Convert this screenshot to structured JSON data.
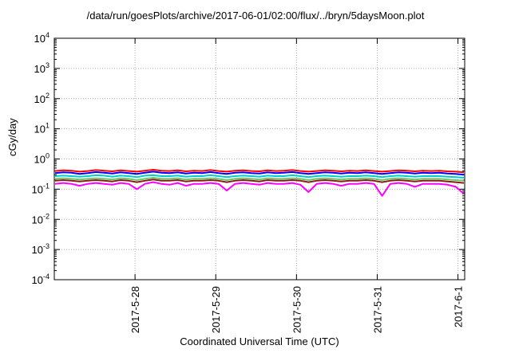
{
  "chart_data": {
    "type": "line",
    "title": "/data/run/goesPlots/archive/2017-06-01/02:00/flux/../bryn/5daysMoon.plot",
    "xlabel": "Coordinated Universal Time (UTC)",
    "ylabel": "cGy/day",
    "yscale": "log",
    "ylim": [
      0.0001,
      10000
    ],
    "y_ticks": [
      {
        "mant": "10",
        "exp": "-4",
        "value": 0.0001
      },
      {
        "mant": "10",
        "exp": "-3",
        "value": 0.001
      },
      {
        "mant": "10",
        "exp": "-2",
        "value": 0.01
      },
      {
        "mant": "10",
        "exp": "-1",
        "value": 0.1
      },
      {
        "mant": "10",
        "exp": "0",
        "value": 1
      },
      {
        "mant": "10",
        "exp": "1",
        "value": 10
      },
      {
        "mant": "10",
        "exp": "2",
        "value": 100
      },
      {
        "mant": "10",
        "exp": "3",
        "value": 1000
      },
      {
        "mant": "10",
        "exp": "4",
        "value": 10000
      }
    ],
    "xlim": [
      "2017-05-27T00:00",
      "2017-06-01T02:00"
    ],
    "x_ticks": [
      {
        "label": "2017-5-28",
        "value": "2017-05-28T00:00"
      },
      {
        "label": "2017-5-29",
        "value": "2017-05-29T00:00"
      },
      {
        "label": "2017-5-30",
        "value": "2017-05-30T00:00"
      },
      {
        "label": "2017-5-31",
        "value": "2017-05-31T00:00"
      },
      {
        "label": "2017-6-1",
        "value": "2017-06-01T00:00"
      }
    ],
    "grid": true,
    "series": [
      {
        "color": "#ff0000",
        "base": 0.4,
        "values": [
          0.4,
          0.42,
          0.41,
          0.38,
          0.4,
          0.43,
          0.41,
          0.39,
          0.42,
          0.4,
          0.38,
          0.41,
          0.44,
          0.41,
          0.4,
          0.42,
          0.39,
          0.41,
          0.4,
          0.43,
          0.4,
          0.38,
          0.41,
          0.42,
          0.4,
          0.39,
          0.42,
          0.4,
          0.41,
          0.43,
          0.4,
          0.38,
          0.4,
          0.42,
          0.41,
          0.39,
          0.41,
          0.4,
          0.42,
          0.4,
          0.38,
          0.4,
          0.42,
          0.41,
          0.39,
          0.41,
          0.4,
          0.41,
          0.39,
          0.38,
          0.36
        ]
      },
      {
        "color": "#0000ff",
        "base": 0.34,
        "values": [
          0.34,
          0.36,
          0.35,
          0.32,
          0.34,
          0.37,
          0.35,
          0.33,
          0.36,
          0.34,
          0.32,
          0.35,
          0.38,
          0.35,
          0.34,
          0.36,
          0.33,
          0.35,
          0.34,
          0.37,
          0.34,
          0.32,
          0.35,
          0.36,
          0.34,
          0.33,
          0.36,
          0.34,
          0.35,
          0.37,
          0.34,
          0.32,
          0.34,
          0.36,
          0.35,
          0.33,
          0.35,
          0.34,
          0.36,
          0.34,
          0.32,
          0.34,
          0.36,
          0.35,
          0.33,
          0.35,
          0.34,
          0.35,
          0.33,
          0.32,
          0.3
        ]
      },
      {
        "color": "#00cccc",
        "base": 0.27,
        "values": [
          0.27,
          0.28,
          0.27,
          0.26,
          0.27,
          0.29,
          0.28,
          0.26,
          0.28,
          0.27,
          0.25,
          0.28,
          0.29,
          0.27,
          0.27,
          0.28,
          0.26,
          0.27,
          0.27,
          0.29,
          0.27,
          0.25,
          0.27,
          0.28,
          0.27,
          0.26,
          0.28,
          0.27,
          0.27,
          0.29,
          0.27,
          0.25,
          0.27,
          0.28,
          0.27,
          0.26,
          0.27,
          0.27,
          0.28,
          0.27,
          0.25,
          0.27,
          0.28,
          0.27,
          0.26,
          0.27,
          0.27,
          0.27,
          0.26,
          0.25,
          0.24
        ]
      },
      {
        "color": "#66cc66",
        "base": 0.22,
        "values": [
          0.22,
          0.23,
          0.22,
          0.21,
          0.22,
          0.23,
          0.22,
          0.21,
          0.23,
          0.22,
          0.2,
          0.22,
          0.24,
          0.22,
          0.22,
          0.23,
          0.21,
          0.22,
          0.22,
          0.23,
          0.22,
          0.2,
          0.22,
          0.23,
          0.22,
          0.21,
          0.23,
          0.22,
          0.22,
          0.23,
          0.22,
          0.2,
          0.22,
          0.23,
          0.22,
          0.21,
          0.22,
          0.22,
          0.23,
          0.22,
          0.2,
          0.22,
          0.23,
          0.22,
          0.21,
          0.22,
          0.22,
          0.22,
          0.21,
          0.2,
          0.19
        ]
      },
      {
        "color": "#8b1a1a",
        "base": 0.19,
        "values": [
          0.19,
          0.2,
          0.19,
          0.18,
          0.19,
          0.2,
          0.19,
          0.18,
          0.2,
          0.19,
          0.17,
          0.19,
          0.21,
          0.19,
          0.19,
          0.2,
          0.18,
          0.19,
          0.19,
          0.2,
          0.19,
          0.17,
          0.19,
          0.2,
          0.19,
          0.18,
          0.2,
          0.19,
          0.19,
          0.2,
          0.19,
          0.17,
          0.19,
          0.2,
          0.19,
          0.18,
          0.19,
          0.19,
          0.2,
          0.19,
          0.17,
          0.19,
          0.2,
          0.19,
          0.18,
          0.19,
          0.19,
          0.19,
          0.18,
          0.17,
          0.16
        ]
      },
      {
        "color": "#ff00ff",
        "base": 0.15,
        "values": [
          0.15,
          0.16,
          0.15,
          0.13,
          0.15,
          0.16,
          0.15,
          0.14,
          0.16,
          0.15,
          0.1,
          0.15,
          0.17,
          0.15,
          0.14,
          0.16,
          0.13,
          0.15,
          0.15,
          0.16,
          0.15,
          0.09,
          0.15,
          0.16,
          0.15,
          0.14,
          0.16,
          0.15,
          0.15,
          0.16,
          0.14,
          0.08,
          0.15,
          0.16,
          0.15,
          0.13,
          0.15,
          0.15,
          0.16,
          0.15,
          0.06,
          0.15,
          0.16,
          0.15,
          0.12,
          0.15,
          0.15,
          0.15,
          0.14,
          0.12,
          0.07
        ]
      }
    ]
  }
}
